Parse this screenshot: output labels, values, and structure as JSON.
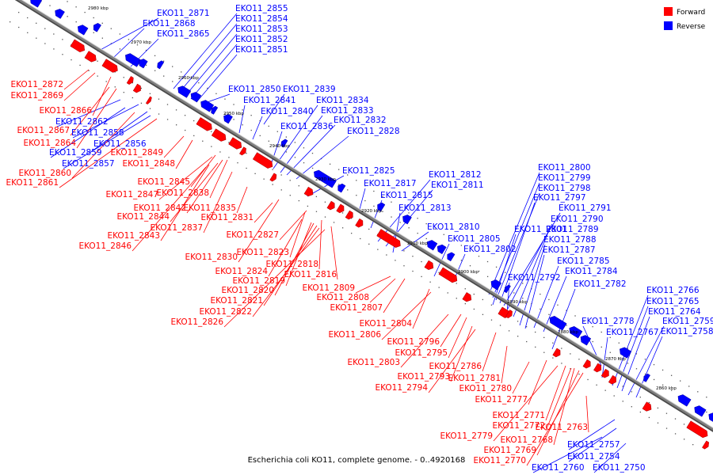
{
  "caption": "Escherichia coli KO11, complete genome. - 0..4920168",
  "legend": {
    "forward_label": "Forward",
    "reverse_label": "Reverse",
    "forward_color": "#ff0000",
    "reverse_color": "#0000ff"
  },
  "colors": {
    "forward": "#ff0000",
    "reverse": "#0000ff",
    "backbone": "#7f7f7f"
  },
  "position_ticks": [
    "2980 kbp",
    "2970 kbp",
    "2960 kbp",
    "2950 kbp",
    "2940 kbp",
    "2930 kbp",
    "2920 kbp",
    "2910 kbp",
    "2900 kbp",
    "2890 kbp",
    "2880 kbp",
    "2870 kbp",
    "2860 kbp"
  ],
  "labels": [
    {
      "text": "EKO11_2871",
      "strand": "reverse"
    },
    {
      "text": "EKO11_2868",
      "strand": "reverse"
    },
    {
      "text": "EKO11_2865",
      "strand": "reverse"
    },
    {
      "text": "EKO11_2855",
      "strand": "reverse"
    },
    {
      "text": "EKO11_2854",
      "strand": "reverse"
    },
    {
      "text": "EKO11_2853",
      "strand": "reverse"
    },
    {
      "text": "EKO11_2852",
      "strand": "reverse"
    },
    {
      "text": "EKO11_2851",
      "strand": "reverse"
    },
    {
      "text": "EKO11_2850",
      "strand": "reverse"
    },
    {
      "text": "EKO11_2839",
      "strand": "reverse"
    },
    {
      "text": "EKO11_2841",
      "strand": "reverse"
    },
    {
      "text": "EKO11_2834",
      "strand": "reverse"
    },
    {
      "text": "EKO11_2840",
      "strand": "reverse"
    },
    {
      "text": "EKO11_2833",
      "strand": "reverse"
    },
    {
      "text": "EKO11_2832",
      "strand": "reverse"
    },
    {
      "text": "EKO11_2836",
      "strand": "reverse"
    },
    {
      "text": "EKO11_2828",
      "strand": "reverse"
    },
    {
      "text": "EKO11_2862",
      "strand": "reverse"
    },
    {
      "text": "EKO11_2858",
      "strand": "reverse"
    },
    {
      "text": "EKO11_2856",
      "strand": "reverse"
    },
    {
      "text": "EKO11_2859",
      "strand": "reverse"
    },
    {
      "text": "EKO11_2857",
      "strand": "reverse"
    },
    {
      "text": "EKO11_2825",
      "strand": "reverse"
    },
    {
      "text": "EKO11_2817",
      "strand": "reverse"
    },
    {
      "text": "EKO11_2812",
      "strand": "reverse"
    },
    {
      "text": "EKO11_2811",
      "strand": "reverse"
    },
    {
      "text": "EKO11_2815",
      "strand": "reverse"
    },
    {
      "text": "EKO11_2813",
      "strand": "reverse"
    },
    {
      "text": "EKO11_2810",
      "strand": "reverse"
    },
    {
      "text": "EKO11_2805",
      "strand": "reverse"
    },
    {
      "text": "EKO11_2802",
      "strand": "reverse"
    },
    {
      "text": "EKO11_2801",
      "strand": "reverse"
    },
    {
      "text": "EKO11_2800",
      "strand": "reverse"
    },
    {
      "text": "EKO11_2799",
      "strand": "reverse"
    },
    {
      "text": "EKO11_2798",
      "strand": "reverse"
    },
    {
      "text": "EKO11_2797",
      "strand": "reverse"
    },
    {
      "text": "EKO11_2791",
      "strand": "reverse"
    },
    {
      "text": "EKO11_2790",
      "strand": "reverse"
    },
    {
      "text": "EKO11_2789",
      "strand": "reverse"
    },
    {
      "text": "EKO11_2788",
      "strand": "reverse"
    },
    {
      "text": "EKO11_2787",
      "strand": "reverse"
    },
    {
      "text": "EKO11_2785",
      "strand": "reverse"
    },
    {
      "text": "EKO11_2784",
      "strand": "reverse"
    },
    {
      "text": "EKO11_2792",
      "strand": "reverse"
    },
    {
      "text": "EKO11_2782",
      "strand": "reverse"
    },
    {
      "text": "EKO11_2766",
      "strand": "reverse"
    },
    {
      "text": "EKO11_2765",
      "strand": "reverse"
    },
    {
      "text": "EKO11_2764",
      "strand": "reverse"
    },
    {
      "text": "EKO11_2759",
      "strand": "reverse"
    },
    {
      "text": "EKO11_2758",
      "strand": "reverse"
    },
    {
      "text": "EKO11_2778",
      "strand": "reverse"
    },
    {
      "text": "EKO11_2767",
      "strand": "reverse"
    },
    {
      "text": "EKO11_2757",
      "strand": "reverse"
    },
    {
      "text": "EKO11_2754",
      "strand": "reverse"
    },
    {
      "text": "EKO11_2760",
      "strand": "reverse"
    },
    {
      "text": "EKO11_2750",
      "strand": "reverse"
    },
    {
      "text": "EKO11_2872",
      "strand": "forward"
    },
    {
      "text": "EKO11_2869",
      "strand": "forward"
    },
    {
      "text": "EKO11_2866",
      "strand": "forward"
    },
    {
      "text": "EKO11_2867",
      "strand": "forward"
    },
    {
      "text": "EKO11_2864",
      "strand": "forward"
    },
    {
      "text": "EKO11_2849",
      "strand": "forward"
    },
    {
      "text": "EKO11_2848",
      "strand": "forward"
    },
    {
      "text": "EKO11_2860",
      "strand": "forward"
    },
    {
      "text": "EKO11_2861",
      "strand": "forward"
    },
    {
      "text": "EKO11_2845",
      "strand": "forward"
    },
    {
      "text": "EKO11_2847",
      "strand": "forward"
    },
    {
      "text": "EKO11_2838",
      "strand": "forward"
    },
    {
      "text": "EKO11_2842",
      "strand": "forward"
    },
    {
      "text": "EKO11_2835",
      "strand": "forward"
    },
    {
      "text": "EKO11_2844",
      "strand": "forward"
    },
    {
      "text": "EKO11_2831",
      "strand": "forward"
    },
    {
      "text": "EKO11_2837",
      "strand": "forward"
    },
    {
      "text": "EKO11_2843",
      "strand": "forward"
    },
    {
      "text": "EKO11_2827",
      "strand": "forward"
    },
    {
      "text": "EKO11_2846",
      "strand": "forward"
    },
    {
      "text": "EKO11_2823",
      "strand": "forward"
    },
    {
      "text": "EKO11_2830",
      "strand": "forward"
    },
    {
      "text": "EKO11_2818",
      "strand": "forward"
    },
    {
      "text": "EKO11_2824",
      "strand": "forward"
    },
    {
      "text": "EKO11_2816",
      "strand": "forward"
    },
    {
      "text": "EKO11_2819",
      "strand": "forward"
    },
    {
      "text": "EKO11_2809",
      "strand": "forward"
    },
    {
      "text": "EKO11_2820",
      "strand": "forward"
    },
    {
      "text": "EKO11_2808",
      "strand": "forward"
    },
    {
      "text": "EKO11_2821",
      "strand": "forward"
    },
    {
      "text": "EKO11_2807",
      "strand": "forward"
    },
    {
      "text": "EKO11_2822",
      "strand": "forward"
    },
    {
      "text": "EKO11_2826",
      "strand": "forward"
    },
    {
      "text": "EKO11_2804",
      "strand": "forward"
    },
    {
      "text": "EKO11_2806",
      "strand": "forward"
    },
    {
      "text": "EKO11_2796",
      "strand": "forward"
    },
    {
      "text": "EKO11_2795",
      "strand": "forward"
    },
    {
      "text": "EKO11_2803",
      "strand": "forward"
    },
    {
      "text": "EKO11_2786",
      "strand": "forward"
    },
    {
      "text": "EKO11_2793",
      "strand": "forward"
    },
    {
      "text": "EKO11_2781",
      "strand": "forward"
    },
    {
      "text": "EKO11_2794",
      "strand": "forward"
    },
    {
      "text": "EKO11_2780",
      "strand": "forward"
    },
    {
      "text": "EKO11_2777",
      "strand": "forward"
    },
    {
      "text": "EKO11_2771",
      "strand": "forward"
    },
    {
      "text": "EKO11_2772",
      "strand": "forward"
    },
    {
      "text": "EKO11_2763",
      "strand": "forward"
    },
    {
      "text": "EKO11_2779",
      "strand": "forward"
    },
    {
      "text": "EKO11_2768",
      "strand": "forward"
    },
    {
      "text": "EKO11_2769",
      "strand": "forward"
    },
    {
      "text": "EKO11_2770",
      "strand": "forward"
    }
  ]
}
